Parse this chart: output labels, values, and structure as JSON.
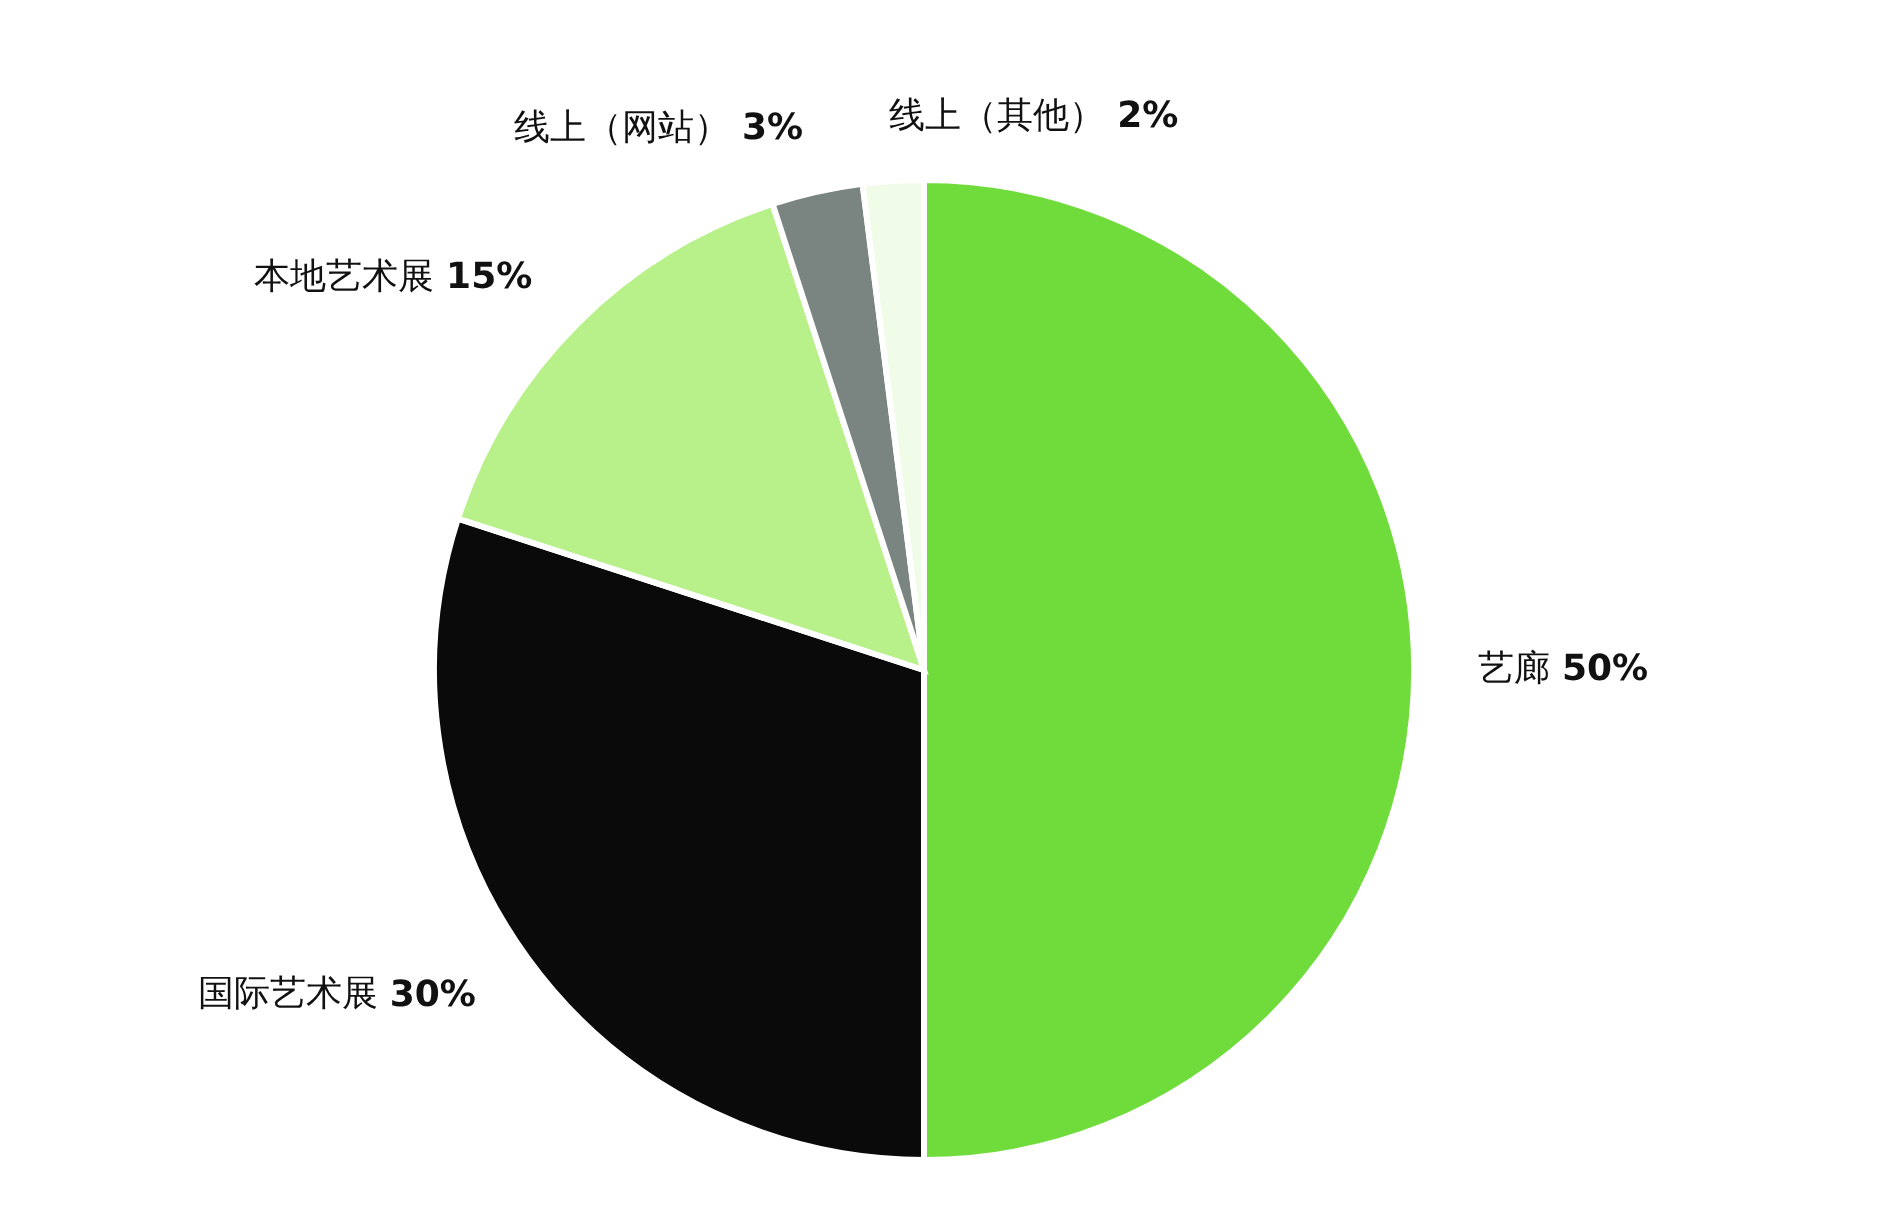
{
  "chart_data": {
    "type": "pie",
    "categories": [
      "艺廊",
      "国际艺术展",
      "本地艺术展",
      "线上（网站）",
      "线上（其他）"
    ],
    "values": [
      50,
      30,
      15,
      3,
      2
    ],
    "colors": [
      "#6fdc3c",
      "#0a0a0a",
      "#b8f08a",
      "#7a8480",
      "#f0fbe8"
    ],
    "value_labels": [
      "50%",
      "30%",
      "15%",
      "3%",
      "2%"
    ]
  }
}
